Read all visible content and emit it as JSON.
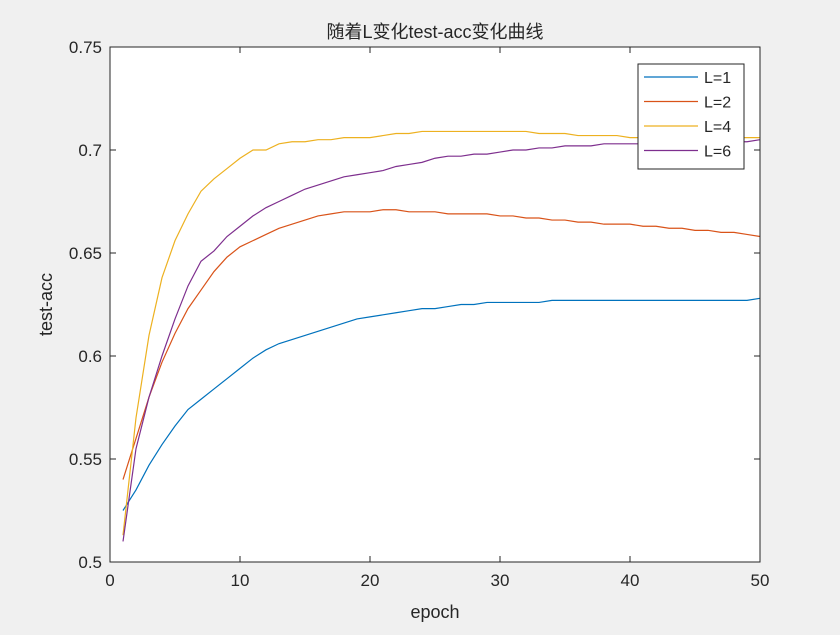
{
  "chart_data": {
    "type": "line",
    "title": "随着L变化test-acc变化曲线",
    "xlabel": "epoch",
    "ylabel": "test-acc",
    "xlim": [
      0,
      50
    ],
    "ylim": [
      0.5,
      0.75
    ],
    "xticks": [
      0,
      10,
      20,
      30,
      40,
      50
    ],
    "yticks": [
      0.5,
      0.55,
      0.6,
      0.65,
      0.7,
      0.75
    ],
    "ytick_labels": [
      "0.5",
      "0.55",
      "0.6",
      "0.65",
      "0.7",
      "0.75"
    ],
    "grid": false,
    "legend_position": "top-right",
    "x": [
      1,
      2,
      3,
      4,
      5,
      6,
      7,
      8,
      9,
      10,
      11,
      12,
      13,
      14,
      15,
      16,
      17,
      18,
      19,
      20,
      21,
      22,
      23,
      24,
      25,
      26,
      27,
      28,
      29,
      30,
      31,
      32,
      33,
      34,
      35,
      36,
      37,
      38,
      39,
      40,
      41,
      42,
      43,
      44,
      45,
      46,
      47,
      48,
      49,
      50
    ],
    "series": [
      {
        "name": "L=1",
        "color": "#0072BD",
        "values": [
          0.525,
          0.535,
          0.547,
          0.557,
          0.566,
          0.574,
          0.579,
          0.584,
          0.589,
          0.594,
          0.599,
          0.603,
          0.606,
          0.608,
          0.61,
          0.612,
          0.614,
          0.616,
          0.618,
          0.619,
          0.62,
          0.621,
          0.622,
          0.623,
          0.623,
          0.624,
          0.625,
          0.625,
          0.626,
          0.626,
          0.626,
          0.626,
          0.626,
          0.627,
          0.627,
          0.627,
          0.627,
          0.627,
          0.627,
          0.627,
          0.627,
          0.627,
          0.627,
          0.627,
          0.627,
          0.627,
          0.627,
          0.627,
          0.627,
          0.628
        ]
      },
      {
        "name": "L=2",
        "color": "#D95319",
        "values": [
          0.54,
          0.56,
          0.58,
          0.597,
          0.611,
          0.623,
          0.632,
          0.641,
          0.648,
          0.653,
          0.656,
          0.659,
          0.662,
          0.664,
          0.666,
          0.668,
          0.669,
          0.67,
          0.67,
          0.67,
          0.671,
          0.671,
          0.67,
          0.67,
          0.67,
          0.669,
          0.669,
          0.669,
          0.669,
          0.668,
          0.668,
          0.667,
          0.667,
          0.666,
          0.666,
          0.665,
          0.665,
          0.664,
          0.664,
          0.664,
          0.663,
          0.663,
          0.662,
          0.662,
          0.661,
          0.661,
          0.66,
          0.66,
          0.659,
          0.658
        ]
      },
      {
        "name": "L=4",
        "color": "#EDB120",
        "values": [
          0.513,
          0.57,
          0.61,
          0.638,
          0.656,
          0.669,
          0.68,
          0.686,
          0.691,
          0.696,
          0.7,
          0.7,
          0.703,
          0.704,
          0.704,
          0.705,
          0.705,
          0.706,
          0.706,
          0.706,
          0.707,
          0.708,
          0.708,
          0.709,
          0.709,
          0.709,
          0.709,
          0.709,
          0.709,
          0.709,
          0.709,
          0.709,
          0.708,
          0.708,
          0.708,
          0.707,
          0.707,
          0.707,
          0.707,
          0.706,
          0.706,
          0.706,
          0.706,
          0.706,
          0.706,
          0.706,
          0.706,
          0.706,
          0.706,
          0.706
        ]
      },
      {
        "name": "L=6",
        "color": "#7E2F8E",
        "values": [
          0.51,
          0.555,
          0.58,
          0.6,
          0.618,
          0.634,
          0.646,
          0.651,
          0.658,
          0.663,
          0.668,
          0.672,
          0.675,
          0.678,
          0.681,
          0.683,
          0.685,
          0.687,
          0.688,
          0.689,
          0.69,
          0.692,
          0.693,
          0.694,
          0.696,
          0.697,
          0.697,
          0.698,
          0.698,
          0.699,
          0.7,
          0.7,
          0.701,
          0.701,
          0.702,
          0.702,
          0.702,
          0.703,
          0.703,
          0.703,
          0.703,
          0.704,
          0.704,
          0.704,
          0.704,
          0.704,
          0.704,
          0.704,
          0.704,
          0.705
        ]
      }
    ]
  }
}
